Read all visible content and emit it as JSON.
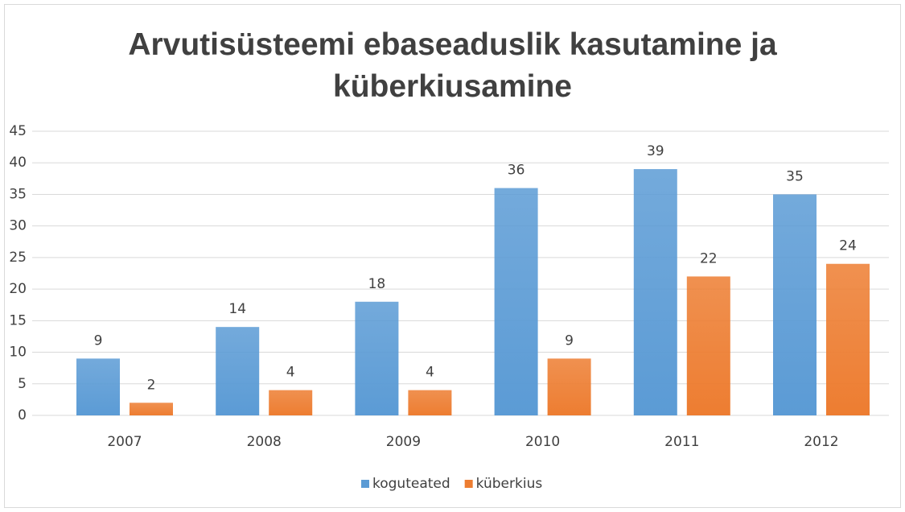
{
  "chart_data": {
    "type": "bar",
    "title": "Arvutisüsteemi ebaseaduslik kasutamine ja küberkiusamine",
    "categories": [
      "2007",
      "2008",
      "2009",
      "2010",
      "2011",
      "2012"
    ],
    "series": [
      {
        "name": "koguteated",
        "color": "#5b9bd5",
        "values": [
          9,
          14,
          18,
          36,
          39,
          35
        ]
      },
      {
        "name": "küberkius",
        "color": "#ed7d31",
        "values": [
          2,
          4,
          4,
          9,
          22,
          24
        ]
      }
    ],
    "ylim": [
      0,
      45
    ],
    "yticks": [
      0,
      5,
      10,
      15,
      20,
      25,
      30,
      35,
      40,
      45
    ],
    "grid": true,
    "legend": "bottom"
  }
}
